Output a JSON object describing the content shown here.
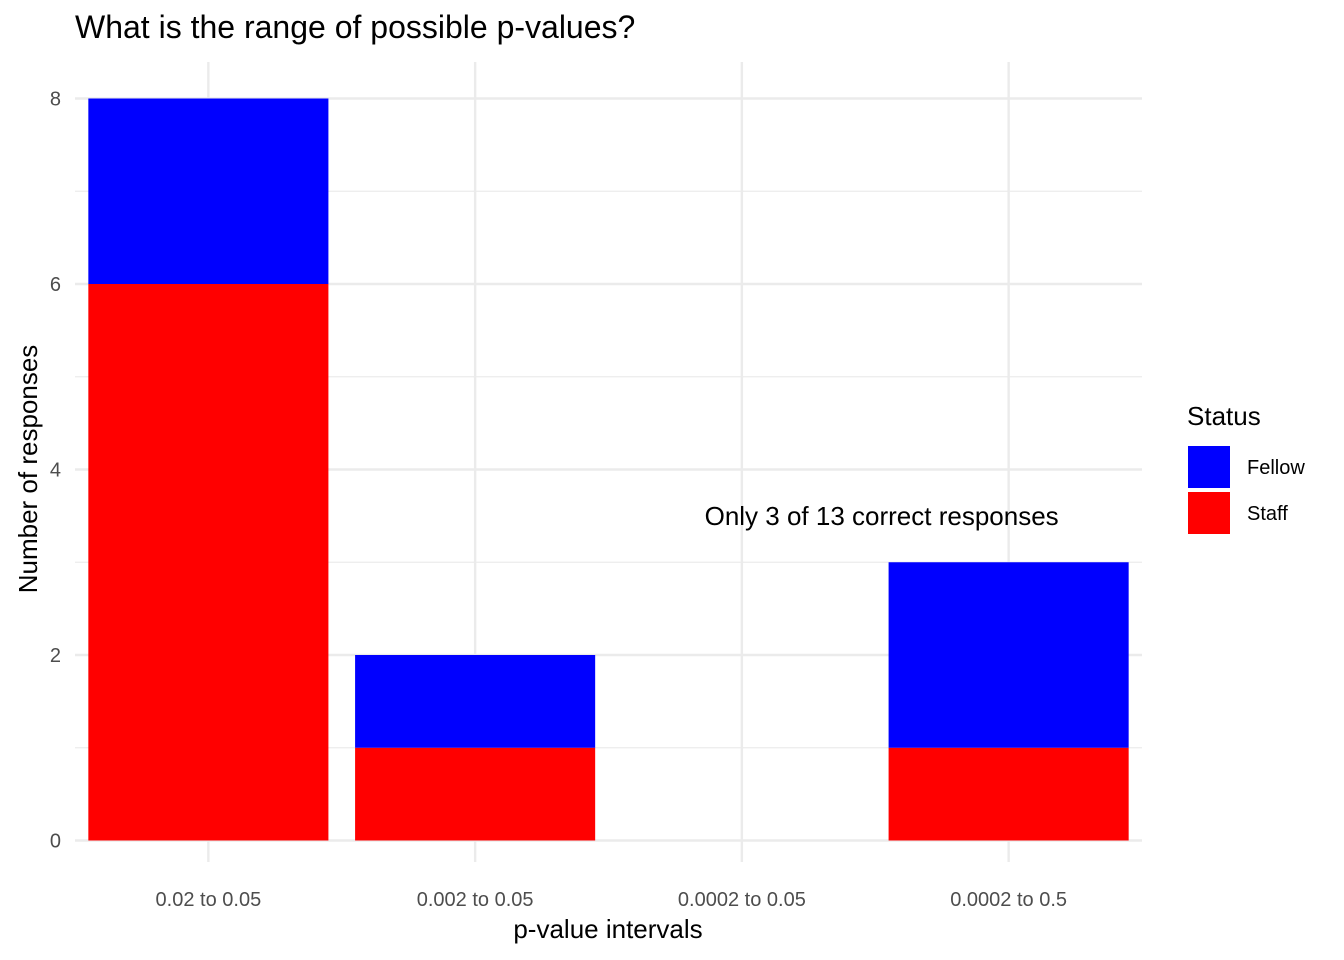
{
  "chart_data": {
    "type": "bar",
    "stacked": true,
    "title": "What is the range of possible p-values?",
    "xlabel": "p-value intervals",
    "ylabel": "Number of responses",
    "categories": [
      "0.02 to 0.05",
      "0.002 to 0.05",
      "0.0002 to 0.05",
      "0.0002 to 0.5"
    ],
    "series": [
      {
        "name": "Staff",
        "color": "#ff0000",
        "values": [
          6,
          1,
          0,
          1
        ]
      },
      {
        "name": "Fellow",
        "color": "#0000ff",
        "values": [
          2,
          1,
          0,
          2
        ]
      }
    ],
    "ylim": [
      0,
      8.4
    ],
    "yticks": [
      0,
      2,
      4,
      6,
      8
    ],
    "yticks_minor": [
      1,
      3,
      5,
      7
    ],
    "grid": true,
    "legend": {
      "title": "Status",
      "position": "right",
      "entries": [
        {
          "name": "Fellow",
          "color": "#0000ff"
        },
        {
          "name": "Staff",
          "color": "#ff0000"
        }
      ]
    },
    "annotation": {
      "text": "Only 3 of 13 correct responses",
      "x_category": "0.0002 to 0.5",
      "y": 3.5
    }
  }
}
